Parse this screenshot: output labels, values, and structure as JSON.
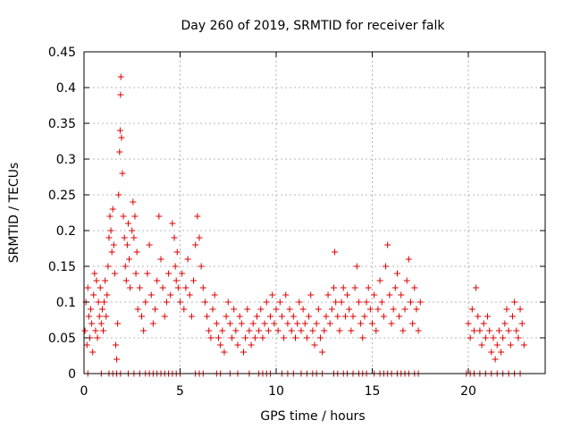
{
  "colors": {
    "series": "#dd0000",
    "grid": "#a0a0a0",
    "axis": "#000000",
    "background": "#ffffff"
  },
  "chart_data": {
    "type": "scatter",
    "title": "Day 260 of 2019, SRMTID for receiver falk",
    "xlabel": "GPS time / hours",
    "ylabel": "SRMTID / TECUs",
    "xlim": [
      0,
      24
    ],
    "ylim": [
      0,
      0.45
    ],
    "xticks": [
      0,
      5,
      10,
      15,
      20
    ],
    "xtick_labels": [
      "0",
      "5",
      "10",
      "15",
      "20"
    ],
    "yticks": [
      0,
      0.05,
      0.1,
      0.15,
      0.2,
      0.25,
      0.3,
      0.35,
      0.4,
      0.45
    ],
    "ytick_labels": [
      "0",
      "0.05",
      "0.1",
      "0.15",
      "0.2",
      "0.25",
      "0.3",
      "0.35",
      "0.4",
      "0.45"
    ],
    "grid": true,
    "marker": "plus",
    "series": [
      {
        "name": "SRMTID",
        "points": [
          [
            0.05,
            0.06
          ],
          [
            0.1,
            0.1
          ],
          [
            0.15,
            0.04
          ],
          [
            0.2,
            0.12
          ],
          [
            0.25,
            0.08
          ],
          [
            0.3,
            0.05
          ],
          [
            0.35,
            0.09
          ],
          [
            0.4,
            0.07
          ],
          [
            0.45,
            0.03
          ],
          [
            0.5,
            0.11
          ],
          [
            0.55,
            0.14
          ],
          [
            0.6,
            0.06
          ],
          [
            0.65,
            0.13
          ],
          [
            0.7,
            0.05
          ],
          [
            0.75,
            0.1
          ],
          [
            0.8,
            0.08
          ],
          [
            0.85,
            0.12
          ],
          [
            0.9,
            0.07
          ],
          [
            0.95,
            0.09
          ],
          [
            1.0,
            0.06
          ],
          [
            1.05,
            0.1
          ],
          [
            1.1,
            0.13
          ],
          [
            1.15,
            0.08
          ],
          [
            1.2,
            0.11
          ],
          [
            1.25,
            0.15
          ],
          [
            1.3,
            0.19
          ],
          [
            1.35,
            0.22
          ],
          [
            1.4,
            0.2
          ],
          [
            1.45,
            0.17
          ],
          [
            1.5,
            0.23
          ],
          [
            1.55,
            0.18
          ],
          [
            1.6,
            0.14
          ],
          [
            1.65,
            0.04
          ],
          [
            1.7,
            0.02
          ],
          [
            1.75,
            0.07
          ],
          [
            1.8,
            0.25
          ],
          [
            1.85,
            0.31
          ],
          [
            1.88,
            0.34
          ],
          [
            1.9,
            0.39
          ],
          [
            1.92,
            0.415
          ],
          [
            1.95,
            0.33
          ],
          [
            2.0,
            0.28
          ],
          [
            2.05,
            0.22
          ],
          [
            2.1,
            0.19
          ],
          [
            2.15,
            0.15
          ],
          [
            2.2,
            0.13
          ],
          [
            2.25,
            0.18
          ],
          [
            2.3,
            0.21
          ],
          [
            2.35,
            0.16
          ],
          [
            2.4,
            0.12
          ],
          [
            2.5,
            0.2
          ],
          [
            2.55,
            0.24
          ],
          [
            2.6,
            0.19
          ],
          [
            2.65,
            0.22
          ],
          [
            2.7,
            0.14
          ],
          [
            2.75,
            0.17
          ],
          [
            2.8,
            0.09
          ],
          [
            2.9,
            0.12
          ],
          [
            3.0,
            0.08
          ],
          [
            3.1,
            0.06
          ],
          [
            3.2,
            0.1
          ],
          [
            3.3,
            0.14
          ],
          [
            3.4,
            0.18
          ],
          [
            3.5,
            0.11
          ],
          [
            3.6,
            0.07
          ],
          [
            3.7,
            0.09
          ],
          [
            3.8,
            0.13
          ],
          [
            3.9,
            0.22
          ],
          [
            4.0,
            0.16
          ],
          [
            4.1,
            0.12
          ],
          [
            4.2,
            0.08
          ],
          [
            4.3,
            0.1
          ],
          [
            4.4,
            0.14
          ],
          [
            4.5,
            0.11
          ],
          [
            4.6,
            0.21
          ],
          [
            4.7,
            0.19
          ],
          [
            4.75,
            0.15
          ],
          [
            4.8,
            0.13
          ],
          [
            4.85,
            0.17
          ],
          [
            4.9,
            0.12
          ],
          [
            5.0,
            0.1
          ],
          [
            5.1,
            0.14
          ],
          [
            5.2,
            0.09
          ],
          [
            5.3,
            0.12
          ],
          [
            5.4,
            0.16
          ],
          [
            5.5,
            0.11
          ],
          [
            5.6,
            0.08
          ],
          [
            5.7,
            0.13
          ],
          [
            5.8,
            0.18
          ],
          [
            5.9,
            0.22
          ],
          [
            6.0,
            0.19
          ],
          [
            6.1,
            0.15
          ],
          [
            6.2,
            0.12
          ],
          [
            6.3,
            0.1
          ],
          [
            6.4,
            0.08
          ],
          [
            6.5,
            0.06
          ],
          [
            6.6,
            0.05
          ],
          [
            6.7,
            0.09
          ],
          [
            6.8,
            0.11
          ],
          [
            6.9,
            0.07
          ],
          [
            7.0,
            0.05
          ],
          [
            7.1,
            0.04
          ],
          [
            7.2,
            0.06
          ],
          [
            7.3,
            0.03
          ],
          [
            7.4,
            0.08
          ],
          [
            7.5,
            0.1
          ],
          [
            7.6,
            0.07
          ],
          [
            7.7,
            0.05
          ],
          [
            7.8,
            0.09
          ],
          [
            7.9,
            0.06
          ],
          [
            8.0,
            0.04
          ],
          [
            8.1,
            0.08
          ],
          [
            8.2,
            0.07
          ],
          [
            8.3,
            0.03
          ],
          [
            8.4,
            0.05
          ],
          [
            8.5,
            0.09
          ],
          [
            8.6,
            0.06
          ],
          [
            8.7,
            0.04
          ],
          [
            8.8,
            0.07
          ],
          [
            8.9,
            0.05
          ],
          [
            9.0,
            0.08
          ],
          [
            9.1,
            0.06
          ],
          [
            9.2,
            0.09
          ],
          [
            9.3,
            0.05
          ],
          [
            9.4,
            0.07
          ],
          [
            9.5,
            0.1
          ],
          [
            9.6,
            0.06
          ],
          [
            9.7,
            0.08
          ],
          [
            9.8,
            0.11
          ],
          [
            9.9,
            0.07
          ],
          [
            10.0,
            0.09
          ],
          [
            10.1,
            0.06
          ],
          [
            10.2,
            0.1
          ],
          [
            10.3,
            0.08
          ],
          [
            10.4,
            0.05
          ],
          [
            10.5,
            0.11
          ],
          [
            10.6,
            0.07
          ],
          [
            10.7,
            0.09
          ],
          [
            10.8,
            0.06
          ],
          [
            10.9,
            0.08
          ],
          [
            11.0,
            0.05
          ],
          [
            11.1,
            0.07
          ],
          [
            11.2,
            0.1
          ],
          [
            11.3,
            0.06
          ],
          [
            11.4,
            0.09
          ],
          [
            11.5,
            0.07
          ],
          [
            11.6,
            0.05
          ],
          [
            11.7,
            0.08
          ],
          [
            11.8,
            0.11
          ],
          [
            11.9,
            0.06
          ],
          [
            12.0,
            0.04
          ],
          [
            12.1,
            0.07
          ],
          [
            12.2,
            0.09
          ],
          [
            12.3,
            0.05
          ],
          [
            12.4,
            0.03
          ],
          [
            12.5,
            0.06
          ],
          [
            12.6,
            0.08
          ],
          [
            12.7,
            0.11
          ],
          [
            12.8,
            0.07
          ],
          [
            12.9,
            0.09
          ],
          [
            13.0,
            0.12
          ],
          [
            13.05,
            0.17
          ],
          [
            13.1,
            0.1
          ],
          [
            13.2,
            0.08
          ],
          [
            13.3,
            0.06
          ],
          [
            13.4,
            0.1
          ],
          [
            13.5,
            0.12
          ],
          [
            13.6,
            0.08
          ],
          [
            13.7,
            0.11
          ],
          [
            13.8,
            0.09
          ],
          [
            13.9,
            0.06
          ],
          [
            14.0,
            0.08
          ],
          [
            14.1,
            0.12
          ],
          [
            14.2,
            0.15
          ],
          [
            14.3,
            0.1
          ],
          [
            14.4,
            0.07
          ],
          [
            14.5,
            0.05
          ],
          [
            14.6,
            0.08
          ],
          [
            14.7,
            0.1
          ],
          [
            14.8,
            0.12
          ],
          [
            14.9,
            0.09
          ],
          [
            15.0,
            0.07
          ],
          [
            15.1,
            0.11
          ],
          [
            15.2,
            0.06
          ],
          [
            15.3,
            0.09
          ],
          [
            15.4,
            0.13
          ],
          [
            15.5,
            0.1
          ],
          [
            15.6,
            0.08
          ],
          [
            15.7,
            0.15
          ],
          [
            15.8,
            0.18
          ],
          [
            15.9,
            0.11
          ],
          [
            16.0,
            0.07
          ],
          [
            16.1,
            0.09
          ],
          [
            16.2,
            0.12
          ],
          [
            16.3,
            0.14
          ],
          [
            16.4,
            0.08
          ],
          [
            16.5,
            0.11
          ],
          [
            16.6,
            0.06
          ],
          [
            16.7,
            0.09
          ],
          [
            16.8,
            0.13
          ],
          [
            16.9,
            0.16
          ],
          [
            17.0,
            0.1
          ],
          [
            17.1,
            0.07
          ],
          [
            17.2,
            0.12
          ],
          [
            17.3,
            0.09
          ],
          [
            17.4,
            0.06
          ],
          [
            17.5,
            0.1
          ],
          [
            20.0,
            0.07
          ],
          [
            20.1,
            0.05
          ],
          [
            20.2,
            0.09
          ],
          [
            20.3,
            0.06
          ],
          [
            20.4,
            0.12
          ],
          [
            20.5,
            0.08
          ],
          [
            20.6,
            0.06
          ],
          [
            20.7,
            0.04
          ],
          [
            20.8,
            0.07
          ],
          [
            20.9,
            0.05
          ],
          [
            21.0,
            0.08
          ],
          [
            21.1,
            0.06
          ],
          [
            21.2,
            0.03
          ],
          [
            21.3,
            0.05
          ],
          [
            21.4,
            0.02
          ],
          [
            21.5,
            0.04
          ],
          [
            21.6,
            0.06
          ],
          [
            21.7,
            0.03
          ],
          [
            21.8,
            0.05
          ],
          [
            21.9,
            0.07
          ],
          [
            22.0,
            0.09
          ],
          [
            22.1,
            0.06
          ],
          [
            22.2,
            0.04
          ],
          [
            22.3,
            0.08
          ],
          [
            22.4,
            0.1
          ],
          [
            22.5,
            0.06
          ],
          [
            22.6,
            0.05
          ],
          [
            22.7,
            0.09
          ],
          [
            22.8,
            0.07
          ],
          [
            22.9,
            0.04
          ]
        ]
      }
    ],
    "zero_points_x": [
      0.2,
      0.9,
      1.3,
      1.5,
      1.7,
      1.9,
      2.3,
      2.6,
      2.9,
      3.2,
      3.4,
      3.6,
      3.8,
      4.0,
      4.2,
      4.4,
      4.6,
      4.8,
      5.0,
      5.8,
      6.0,
      6.2,
      6.9,
      7.1,
      7.6,
      8.0,
      8.6,
      9.1,
      9.3,
      9.5,
      9.7,
      10.3,
      10.6,
      10.9,
      11.3,
      11.6,
      11.9,
      12.1,
      12.4,
      13.0,
      13.2,
      13.5,
      13.7,
      14.0,
      14.3,
      14.5,
      14.7,
      15.1,
      15.4,
      15.6,
      15.8,
      16.0,
      16.3,
      16.5,
      16.7,
      16.9,
      17.2,
      17.4,
      19.9,
      20.1,
      20.3,
      20.6,
      20.9,
      21.2,
      21.5,
      21.8,
      22.1,
      22.4,
      22.7
    ]
  }
}
